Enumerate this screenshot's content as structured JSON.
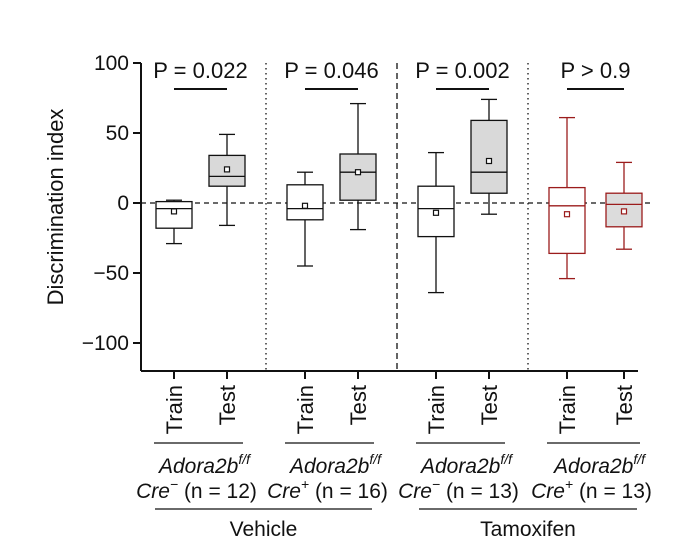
{
  "chart_data": {
    "type": "box",
    "ylabel": "Discrimination index",
    "ylim": [
      -120,
      100
    ],
    "yticks": [
      100,
      50,
      0,
      -50,
      -100
    ],
    "ytick_labels": [
      "100",
      "50",
      "0",
      "−50",
      "−100"
    ],
    "reference_line": 0,
    "groups": [
      {
        "name": "Adora2b",
        "superscript": "f/f",
        "cre": "Cre",
        "cre_sign": "−",
        "n_text": " (n = 12)",
        "treatment": "Vehicle",
        "p_value": "P = 0.022",
        "boxes": [
          {
            "label": "Train",
            "min": -29,
            "q1": -18,
            "median": -4,
            "q3": 1,
            "max": 2,
            "mean": -6,
            "fill": "#ffffff",
            "stroke": "#111111"
          },
          {
            "label": "Test",
            "min": -16,
            "q1": 12,
            "median": 19,
            "q3": 34,
            "max": 49,
            "mean": 24,
            "fill": "#d9d9d9",
            "stroke": "#111111"
          }
        ]
      },
      {
        "name": "Adora2b",
        "superscript": "f/f",
        "cre": "Cre",
        "cre_sign": "+",
        "n_text": " (n = 16)",
        "treatment": "Vehicle",
        "p_value": "P = 0.046",
        "boxes": [
          {
            "label": "Train",
            "min": -45,
            "q1": -12,
            "median": -4,
            "q3": 13,
            "max": 22,
            "mean": -2,
            "fill": "#ffffff",
            "stroke": "#111111"
          },
          {
            "label": "Test",
            "min": -19,
            "q1": 2,
            "median": 22,
            "q3": 35,
            "max": 71,
            "mean": 22,
            "fill": "#d9d9d9",
            "stroke": "#111111"
          }
        ]
      },
      {
        "name": "Adora2b",
        "superscript": "f/f",
        "cre": "Cre",
        "cre_sign": "−",
        "n_text": " (n = 13)",
        "treatment": "Tamoxifen",
        "p_value": "P = 0.002",
        "boxes": [
          {
            "label": "Train",
            "min": -64,
            "q1": -24,
            "median": -4,
            "q3": 12,
            "max": 36,
            "mean": -7,
            "fill": "#ffffff",
            "stroke": "#111111"
          },
          {
            "label": "Test",
            "min": -8,
            "q1": 7,
            "median": 22,
            "q3": 59,
            "max": 74,
            "mean": 30,
            "fill": "#d9d9d9",
            "stroke": "#111111"
          }
        ]
      },
      {
        "name": "Adora2b",
        "superscript": "f/f",
        "cre": "Cre",
        "cre_sign": "+",
        "n_text": " (n = 13)",
        "treatment": "Tamoxifen",
        "p_value": "P > 0.9",
        "boxes": [
          {
            "label": "Train",
            "min": -54,
            "q1": -36,
            "median": -2,
            "q3": 11,
            "max": 61,
            "mean": -8,
            "fill": "#ffffff",
            "stroke": "#9b1c1c"
          },
          {
            "label": "Test",
            "min": -33,
            "q1": -17,
            "median": -1,
            "q3": 7,
            "max": 29,
            "mean": -6,
            "fill": "#dcdcdc",
            "stroke": "#9b1c1c"
          }
        ]
      }
    ],
    "treatments": [
      "Vehicle",
      "Tamoxifen"
    ]
  }
}
